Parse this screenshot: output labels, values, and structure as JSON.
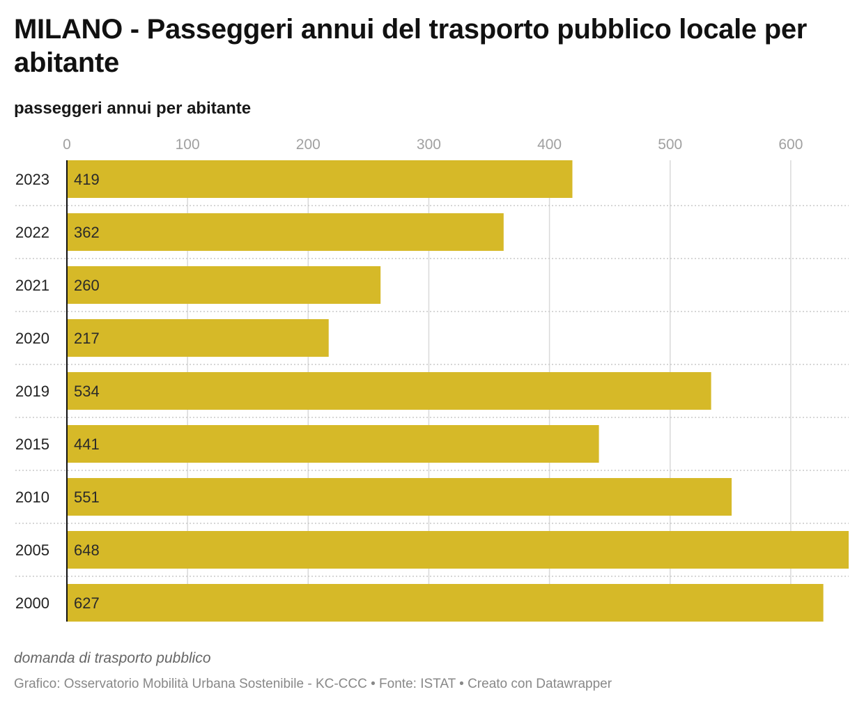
{
  "title": "MILANO - Passeggeri annui del trasporto pubblico locale per abitante",
  "subtitle": "passeggeri annui per abitante",
  "note": "domanda di trasporto pubblico",
  "source": "Grafico: Osservatorio Mobilità Urbana Sostenibile - KC-CCC • Fonte: ISTAT • Creato con Datawrapper",
  "colors": {
    "bar": "#d6b928",
    "grid": "#d9d9d9",
    "axis": "#111111",
    "tick_label": "#a0a0a0",
    "row_separator": "#c8c8c8"
  },
  "chart_data": {
    "type": "bar",
    "orientation": "horizontal",
    "categories": [
      "2023",
      "2022",
      "2021",
      "2020",
      "2019",
      "2015",
      "2010",
      "2005",
      "2000"
    ],
    "values": [
      419,
      362,
      260,
      217,
      534,
      441,
      551,
      648,
      627
    ],
    "value_labels": [
      "419",
      "362",
      "260",
      "217",
      "534",
      "441",
      "551",
      "648",
      "627"
    ],
    "xticks": [
      0,
      100,
      200,
      300,
      400,
      500,
      600
    ],
    "xtick_labels": [
      "0",
      "100",
      "200",
      "300",
      "400",
      "500",
      "600"
    ],
    "xlim": [
      0,
      648
    ],
    "xaxis_position": "top",
    "grid": true,
    "legend": "none",
    "ylabel": "passeggeri annui per abitante"
  }
}
